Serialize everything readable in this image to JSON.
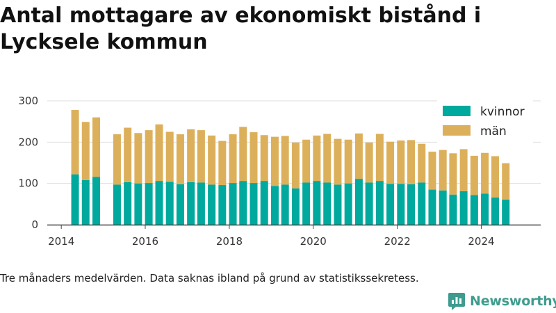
{
  "title": "Antal mottagare av ekonomiskt bistånd i Lycksele kommun",
  "footnote": "Tre månaders medelvärden. Data saknas ibland på grund av statistikssekretess.",
  "brand": "Newsworthy",
  "colors": {
    "kvinnor": "#00a99d",
    "man": "#dcb05b",
    "brand": "#3e9c8e"
  },
  "chart_data": {
    "type": "bar",
    "stacked": true,
    "x_axis": {
      "type": "date",
      "ticks": [
        "2014",
        "2016",
        "2018",
        "2020",
        "2022",
        "2024"
      ],
      "range": [
        "2013-09",
        "2025-06"
      ]
    },
    "y_axis": {
      "ticks": [
        "0",
        "100",
        "200",
        "300"
      ],
      "ylim": [
        0,
        300
      ],
      "grid": true
    },
    "legend": {
      "position": "top-right",
      "entries": [
        "kvinnor",
        "män"
      ]
    },
    "x": [
      "2014-05",
      "2014-08",
      "2014-11",
      "2015-05",
      "2015-08",
      "2015-11",
      "2016-02",
      "2016-05",
      "2016-08",
      "2016-11",
      "2017-02",
      "2017-05",
      "2017-08",
      "2017-11",
      "2018-02",
      "2018-05",
      "2018-08",
      "2018-11",
      "2019-02",
      "2019-05",
      "2019-08",
      "2019-11",
      "2020-02",
      "2020-05",
      "2020-08",
      "2020-11",
      "2021-02",
      "2021-05",
      "2021-08",
      "2021-11",
      "2022-02",
      "2022-05",
      "2022-08",
      "2022-11",
      "2023-02",
      "2023-05",
      "2023-08",
      "2023-11",
      "2024-02",
      "2024-05",
      "2024-08"
    ],
    "series": [
      {
        "name": "kvinnor",
        "values": [
          122,
          108,
          116,
          97,
          103,
          100,
          101,
          106,
          104,
          98,
          103,
          102,
          97,
          96,
          101,
          106,
          101,
          106,
          94,
          97,
          88,
          102,
          106,
          102,
          97,
          100,
          111,
          102,
          106,
          99,
          99,
          98,
          102,
          85,
          83,
          73,
          81,
          72,
          75,
          66,
          61
        ]
      },
      {
        "name": "män",
        "values": [
          156,
          141,
          144,
          122,
          132,
          122,
          128,
          137,
          121,
          121,
          128,
          127,
          119,
          107,
          118,
          131,
          123,
          111,
          119,
          118,
          111,
          104,
          110,
          118,
          111,
          106,
          110,
          97,
          114,
          102,
          105,
          107,
          94,
          92,
          98,
          100,
          102,
          95,
          99,
          100,
          88
        ]
      }
    ]
  }
}
